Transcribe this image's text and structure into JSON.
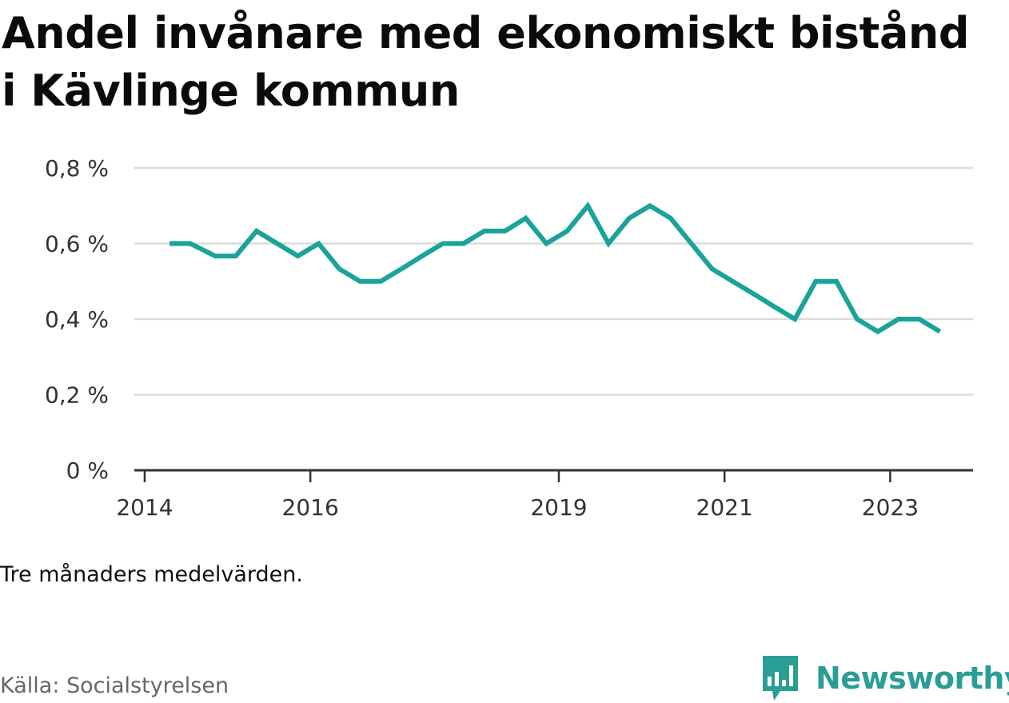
{
  "title": "Andel invånare med ekonomiskt bistånd i Kävlinge kommun",
  "note": "Tre månaders medelvärden.",
  "source": "Källa: Socialstyrelsen",
  "brand": {
    "name": "Newsworthy",
    "color": "#2a9d95"
  },
  "chart_data": {
    "type": "line",
    "title": "Andel invånare med ekonomiskt bistånd i Kävlinge kommun",
    "xlabel": "",
    "ylabel": "",
    "ylim": [
      0,
      0.8
    ],
    "y_ticks": [
      0,
      0.2,
      0.4,
      0.6,
      0.8
    ],
    "y_tick_labels": [
      "0 %",
      "0,2 %",
      "0,4 %",
      "0,6 %",
      "0,8 %"
    ],
    "x_ticks": [
      2014,
      2016,
      2019,
      2021,
      2023
    ],
    "x_tick_labels": [
      "2014",
      "2016",
      "2019",
      "2021",
      "2023"
    ],
    "xlim": [
      2013.875,
      2024.0
    ],
    "grid": true,
    "line_color": "#1aa39a",
    "series": [
      {
        "x": [
          2014.3,
          2014.55,
          2014.85,
          2015.1,
          2015.35,
          2015.6,
          2015.85,
          2016.1,
          2016.35,
          2016.6,
          2016.85,
          2017.1,
          2017.35,
          2017.6,
          2017.85,
          2018.1,
          2018.35,
          2018.6,
          2018.85,
          2019.1,
          2019.35,
          2019.6,
          2019.85,
          2020.1,
          2020.35,
          2020.6,
          2020.85,
          2021.1,
          2021.35,
          2021.6,
          2021.85,
          2022.1,
          2022.35,
          2022.6,
          2022.85,
          2023.1,
          2023.35,
          2023.6
        ],
        "values": [
          0.6,
          0.6,
          0.567,
          0.567,
          0.633,
          0.6,
          0.567,
          0.6,
          0.533,
          0.5,
          0.5,
          0.533,
          0.567,
          0.6,
          0.6,
          0.633,
          0.633,
          0.667,
          0.6,
          0.633,
          0.7,
          0.6,
          0.667,
          0.7,
          0.667,
          0.6,
          0.533,
          0.5,
          0.467,
          0.433,
          0.4,
          0.5,
          0.5,
          0.4,
          0.367,
          0.4,
          0.4,
          0.367
        ]
      }
    ]
  }
}
